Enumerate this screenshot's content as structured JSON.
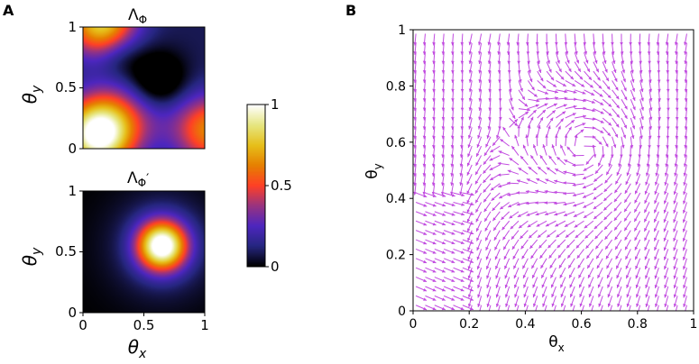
{
  "figure": {
    "panel_a_letter": "A",
    "panel_b_letter": "B"
  },
  "colors": {
    "arrow": "#c14be0",
    "axis": "#000000"
  },
  "chart_data": [
    {
      "type": "heatmap",
      "title": "Λ_Φ",
      "title_main": "Λ",
      "title_sub": "Φ",
      "x_range": [
        0,
        1
      ],
      "y_range": [
        0,
        1
      ],
      "y_ticks": [
        "0",
        "0.5",
        "1"
      ],
      "ylabel_main": "θ",
      "ylabel_sub": "y",
      "peaks": [
        {
          "x": 0.12,
          "y": 0.12,
          "value": 1.0
        },
        {
          "x": 0.15,
          "y": 1.05,
          "value": 0.75
        },
        {
          "x": 1.05,
          "y": 0.15,
          "value": 0.55
        }
      ],
      "minimum": {
        "x": 0.6,
        "y": 0.55,
        "value": 0.0
      }
    },
    {
      "type": "heatmap",
      "title": "Λ_Φ'",
      "title_main": "Λ",
      "title_sub": "Φ",
      "title_prime": "′",
      "x_range": [
        0,
        1
      ],
      "y_range": [
        0,
        1
      ],
      "x_ticks": [
        "0",
        "0.5",
        "1"
      ],
      "y_ticks": [
        "0",
        "0.5",
        "1"
      ],
      "xlabel_main": "θ",
      "xlabel_sub": "x",
      "ylabel_main": "θ",
      "ylabel_sub": "y",
      "peaks": [
        {
          "x": 0.65,
          "y": 0.55,
          "value": 1.0
        }
      ]
    },
    {
      "type": "colorbar",
      "range": [
        0,
        1
      ],
      "ticks": [
        "0",
        "0.5",
        "1"
      ],
      "colormap": "CMRmap"
    },
    {
      "type": "quiver",
      "x_range": [
        0,
        1
      ],
      "y_range": [
        0,
        1
      ],
      "x_ticks": [
        "0",
        "0.2",
        "0.4",
        "0.6",
        "0.8",
        "1"
      ],
      "y_ticks": [
        "0",
        "0.2",
        "0.4",
        "0.6",
        "0.8",
        "1"
      ],
      "xlabel_main": "θ",
      "xlabel_sub": "x",
      "ylabel_main": "θ",
      "ylabel_sub": "y",
      "grid_step": 0.0333,
      "arrow_color": "#c14be0",
      "critical_points": [
        {
          "kind": "vortex",
          "x": 0.61,
          "y": 0.58
        },
        {
          "kind": "corner",
          "x": 0.17,
          "y": 0.45
        }
      ]
    }
  ]
}
